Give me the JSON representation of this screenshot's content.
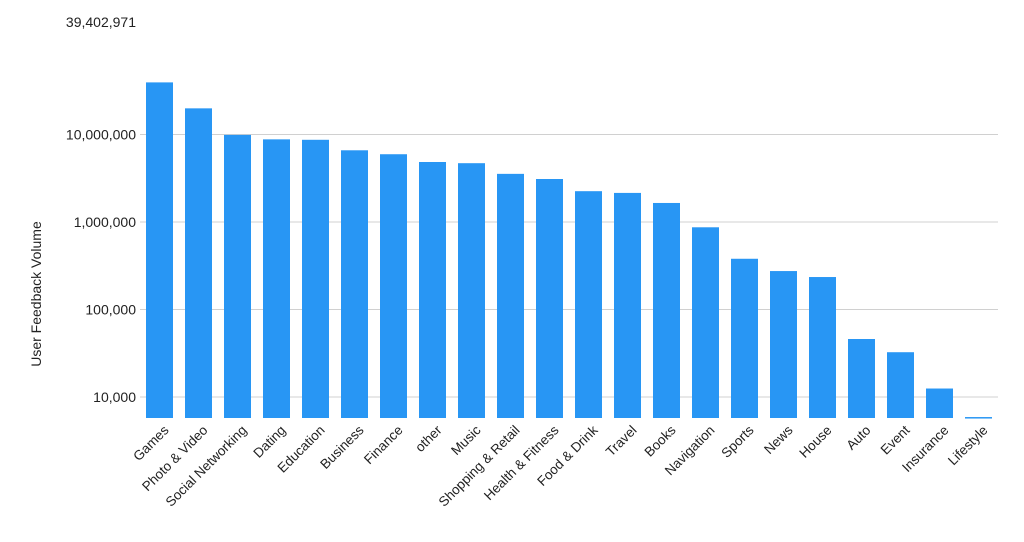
{
  "chart_data": {
    "type": "bar",
    "ylabel": "User Feedback Volume",
    "yscale": "log",
    "ylim": [
      5600,
      39402971
    ],
    "grid": true,
    "legend": "none",
    "bar_color": "#2896f4",
    "grid_color": "#d0d0d0",
    "y_ticks": [
      10000,
      100000,
      1000000,
      10000000,
      39402971
    ],
    "y_tick_labels": [
      "10,000",
      "100,000",
      "1,000,000",
      "10,000,000",
      "39,402,971"
    ],
    "categories": [
      "Games",
      "Photo & Video",
      "Social Networking",
      "Dating",
      "Education",
      "Business",
      "Finance",
      "other",
      "Music",
      "Shopping & Retail",
      "Health & Fitness",
      "Food & Drink",
      "Travel",
      "Books",
      "Navigation",
      "Sports",
      "News",
      "House",
      "Auto",
      "Event",
      "Insurance",
      "Lifestyle"
    ],
    "values": [
      39402971,
      19900000,
      9900000,
      8800000,
      8700000,
      6600000,
      5950000,
      4850000,
      4700000,
      3550000,
      3100000,
      2250000,
      2150000,
      1650000,
      870000,
      380000,
      275000,
      235000,
      46000,
      32500,
      12500,
      5900
    ]
  }
}
